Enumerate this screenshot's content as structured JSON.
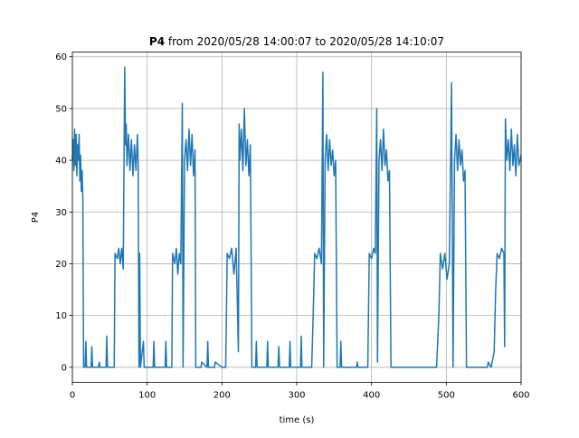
{
  "chart_data": {
    "type": "line",
    "title": {
      "bold": "P4",
      "rest": "from 2020/05/28 14:00:07 to 2020/05/28 14:10:07"
    },
    "xlabel": "time (s)",
    "ylabel": "P4",
    "xlim": [
      0,
      600
    ],
    "ylim": [
      -2.9,
      60.9
    ],
    "xticks": [
      0,
      100,
      200,
      300,
      400,
      500,
      600
    ],
    "yticks": [
      0,
      10,
      20,
      30,
      40,
      50,
      60
    ],
    "grid": true,
    "x": [
      0,
      1,
      2,
      3,
      4,
      5,
      6,
      7,
      8,
      9,
      10,
      11,
      12,
      13,
      14,
      15,
      17,
      18,
      19,
      25,
      26,
      27,
      35,
      36,
      37,
      45,
      46,
      47,
      56,
      57,
      60,
      62,
      64,
      66,
      68,
      70,
      71,
      72,
      73,
      75,
      77,
      79,
      81,
      83,
      85,
      87,
      88,
      89,
      90,
      91,
      95,
      96,
      108,
      109,
      110,
      124,
      125,
      126,
      133,
      134,
      137,
      139,
      141,
      143,
      145,
      147,
      148,
      150,
      152,
      154,
      156,
      158,
      160,
      162,
      164,
      165,
      172,
      173,
      180,
      181,
      182,
      190,
      191,
      200,
      205,
      206,
      207,
      210,
      213,
      216,
      219,
      222,
      223,
      224,
      226,
      228,
      230,
      232,
      234,
      236,
      238,
      240,
      245,
      246,
      247,
      260,
      261,
      262,
      275,
      276,
      277,
      290,
      291,
      292,
      305,
      306,
      307,
      320,
      322,
      324,
      327,
      330,
      333,
      335,
      336,
      338,
      340,
      342,
      344,
      346,
      348,
      350,
      352,
      354,
      358,
      359,
      360,
      380,
      381,
      382,
      395,
      397,
      400,
      403,
      405,
      407,
      408,
      410,
      412,
      414,
      416,
      418,
      420,
      422,
      424,
      426,
      440,
      487,
      490,
      492,
      495,
      498,
      501,
      504,
      507,
      509,
      511,
      513,
      515,
      517,
      519,
      521,
      523,
      525,
      527,
      540,
      555,
      556,
      560,
      564,
      566,
      568,
      571,
      574,
      577,
      578,
      579,
      581,
      583,
      585,
      587,
      589,
      591,
      593,
      595,
      597,
      600
    ],
    "series": [
      {
        "name": "P4",
        "color": "#1f77b4",
        "values": [
          40,
          44,
          38,
          46,
          39,
          45,
          37,
          43,
          40,
          45,
          36,
          41,
          34,
          38,
          33,
          0,
          0,
          5,
          0,
          0,
          4,
          0,
          0,
          1,
          0,
          0,
          6,
          0,
          0,
          22,
          21,
          23,
          20,
          23,
          19,
          58,
          43,
          47,
          39,
          45,
          38,
          44,
          37,
          43,
          38,
          45,
          39,
          0,
          22,
          0,
          5,
          0,
          0,
          5,
          0,
          0,
          5,
          0,
          0,
          22,
          20,
          23,
          18,
          22,
          20,
          51,
          0,
          40,
          44,
          38,
          46,
          39,
          45,
          37,
          42,
          0,
          0,
          1,
          0,
          5,
          0,
          0,
          1,
          0,
          0,
          10,
          22,
          21,
          23,
          18,
          23,
          3,
          47,
          40,
          46,
          38,
          50,
          39,
          44,
          37,
          43,
          0,
          0,
          5,
          0,
          0,
          5,
          0,
          0,
          4,
          0,
          0,
          5,
          0,
          0,
          6,
          0,
          0,
          10,
          22,
          21,
          23,
          20,
          57,
          0,
          40,
          45,
          38,
          44,
          39,
          42,
          37,
          40,
          0,
          0,
          5,
          0,
          0,
          1,
          0,
          0,
          22,
          21,
          23,
          22,
          50,
          1,
          40,
          44,
          38,
          46,
          39,
          42,
          36,
          38,
          0,
          0,
          0,
          10,
          22,
          19,
          22,
          17,
          20,
          55,
          0,
          40,
          45,
          38,
          44,
          39,
          42,
          36,
          38,
          0,
          0,
          0,
          1,
          0,
          3,
          15,
          22,
          21,
          23,
          22,
          4,
          48,
          40,
          44,
          38,
          46,
          39,
          43,
          37,
          45,
          39,
          41
        ]
      }
    ]
  }
}
